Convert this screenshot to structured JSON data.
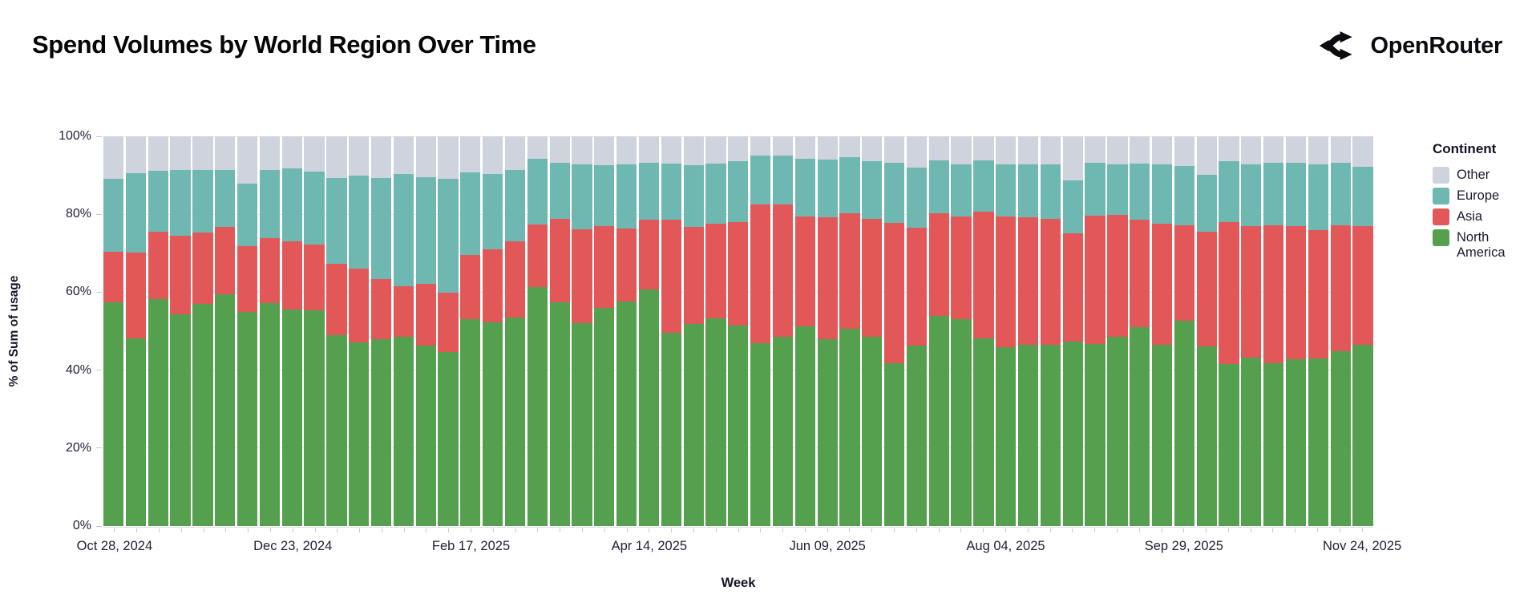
{
  "header": {
    "title": "Spend Volumes by World Region Over Time",
    "brand": "OpenRouter"
  },
  "chart": {
    "y_axis": {
      "title": "% of Sum of usage",
      "ticks": [
        "0%",
        "20%",
        "40%",
        "60%",
        "80%",
        "100%"
      ]
    },
    "x_axis": {
      "title": "Week",
      "tick_labels": [
        "Oct 28, 2024",
        "Dec 23, 2024",
        "Feb 17, 2025",
        "Apr 14, 2025",
        "Jun 09, 2025",
        "Aug 04, 2025",
        "Sep 29, 2025",
        "Nov 24, 2025"
      ],
      "tick_every": 8
    },
    "legend": {
      "title": "Continent",
      "items": [
        {
          "label": "Other",
          "color": "#ced3de"
        },
        {
          "label": "Europe",
          "color": "#6fb8b2"
        },
        {
          "label": "Asia",
          "color": "#e25757"
        },
        {
          "label": "North America",
          "color": "#55a04f"
        }
      ]
    }
  },
  "chart_data": {
    "type": "bar",
    "stacked": true,
    "normalized": "percent",
    "title": "Spend Volumes by World Region Over Time",
    "xlabel": "Week",
    "ylabel": "% of Sum of usage",
    "ylim": [
      0,
      100
    ],
    "grid": true,
    "legend_position": "right",
    "x": [
      "Oct 28, 2024",
      "Nov 04, 2024",
      "Nov 11, 2024",
      "Nov 18, 2024",
      "Nov 25, 2024",
      "Dec 02, 2024",
      "Dec 09, 2024",
      "Dec 16, 2024",
      "Dec 23, 2024",
      "Dec 30, 2024",
      "Jan 06, 2025",
      "Jan 13, 2025",
      "Jan 20, 2025",
      "Jan 27, 2025",
      "Feb 03, 2025",
      "Feb 10, 2025",
      "Feb 17, 2025",
      "Feb 24, 2025",
      "Mar 03, 2025",
      "Mar 10, 2025",
      "Mar 17, 2025",
      "Mar 24, 2025",
      "Mar 31, 2025",
      "Apr 07, 2025",
      "Apr 14, 2025",
      "Apr 21, 2025",
      "Apr 28, 2025",
      "May 05, 2025",
      "May 12, 2025",
      "May 19, 2025",
      "May 26, 2025",
      "Jun 02, 2025",
      "Jun 09, 2025",
      "Jun 16, 2025",
      "Jun 23, 2025",
      "Jun 30, 2025",
      "Jul 07, 2025",
      "Jul 14, 2025",
      "Jul 21, 2025",
      "Jul 28, 2025",
      "Aug 04, 2025",
      "Aug 11, 2025",
      "Aug 18, 2025",
      "Aug 25, 2025",
      "Sep 01, 2025",
      "Sep 08, 2025",
      "Sep 15, 2025",
      "Sep 22, 2025",
      "Sep 29, 2025",
      "Oct 06, 2025",
      "Oct 13, 2025",
      "Oct 20, 2025",
      "Oct 27, 2025",
      "Nov 03, 2025",
      "Nov 10, 2025",
      "Nov 17, 2025",
      "Nov 24, 2025"
    ],
    "series": [
      {
        "name": "North America",
        "color": "#55a04f",
        "values": [
          57.5,
          48.1,
          58.2,
          54.4,
          57.1,
          59.4,
          54.9,
          57.3,
          55.6,
          55.3,
          49.0,
          47.2,
          48.0,
          48.6,
          46.4,
          44.7,
          53.0,
          52.2,
          53.4,
          61.4,
          57.5,
          52.0,
          55.9,
          57.6,
          60.6,
          49.6,
          51.8,
          53.2,
          51.5,
          47.0,
          48.6,
          51.3,
          47.9,
          50.6,
          48.6,
          41.8,
          46.4,
          54.0,
          53.0,
          48.2,
          45.8,
          46.6,
          46.5,
          47.3,
          46.8,
          48.6,
          51.0,
          46.5,
          52.6,
          46.0,
          41.5,
          43.3,
          41.7,
          42.7,
          43.1,
          44.9,
          46.5
        ]
      },
      {
        "name": "Asia",
        "color": "#e25757",
        "values": [
          12.9,
          22.1,
          17.4,
          20.0,
          18.2,
          17.4,
          17.0,
          16.5,
          17.5,
          16.9,
          18.3,
          18.8,
          15.4,
          12.9,
          15.7,
          15.2,
          16.6,
          18.7,
          19.7,
          16.0,
          21.3,
          24.1,
          21.0,
          18.8,
          18.1,
          29.0,
          24.9,
          24.4,
          26.4,
          35.6,
          33.9,
          28.1,
          31.4,
          29.6,
          30.3,
          35.9,
          30.1,
          26.3,
          26.4,
          32.5,
          33.6,
          32.6,
          32.4,
          27.8,
          32.8,
          31.3,
          27.6,
          31.0,
          24.5,
          29.6,
          36.5,
          33.6,
          35.5,
          34.2,
          32.9,
          32.3,
          30.5
        ]
      },
      {
        "name": "Europe",
        "color": "#6fb8b2",
        "values": [
          18.6,
          20.4,
          15.6,
          16.9,
          16.1,
          14.6,
          16.0,
          17.6,
          18.6,
          18.7,
          22.1,
          23.9,
          26.0,
          28.8,
          27.4,
          29.3,
          21.2,
          19.4,
          18.3,
          16.8,
          14.5,
          16.7,
          15.8,
          16.5,
          14.6,
          14.5,
          15.9,
          15.5,
          15.7,
          12.4,
          12.5,
          14.8,
          14.7,
          14.4,
          14.8,
          15.6,
          15.4,
          13.5,
          13.4,
          13.2,
          13.4,
          13.7,
          13.9,
          13.6,
          13.7,
          13.0,
          14.5,
          15.3,
          15.2,
          14.5,
          15.7,
          16.0,
          16.1,
          16.4,
          16.9,
          16.1,
          15.2
        ]
      },
      {
        "name": "Other",
        "color": "#ced3de",
        "values": [
          11.0,
          9.4,
          8.8,
          8.7,
          8.6,
          8.6,
          12.1,
          8.6,
          8.3,
          9.1,
          10.6,
          10.1,
          10.6,
          9.7,
          10.5,
          10.8,
          9.2,
          9.7,
          8.6,
          5.8,
          6.7,
          7.2,
          7.3,
          7.1,
          6.7,
          6.9,
          7.4,
          6.9,
          6.4,
          5.0,
          5.0,
          5.8,
          6.0,
          5.4,
          6.3,
          6.7,
          8.1,
          6.2,
          7.2,
          6.1,
          7.2,
          7.1,
          7.2,
          11.3,
          6.7,
          7.1,
          6.9,
          7.2,
          7.7,
          9.9,
          6.3,
          7.1,
          6.7,
          6.7,
          7.1,
          6.7,
          7.8
        ]
      }
    ]
  }
}
